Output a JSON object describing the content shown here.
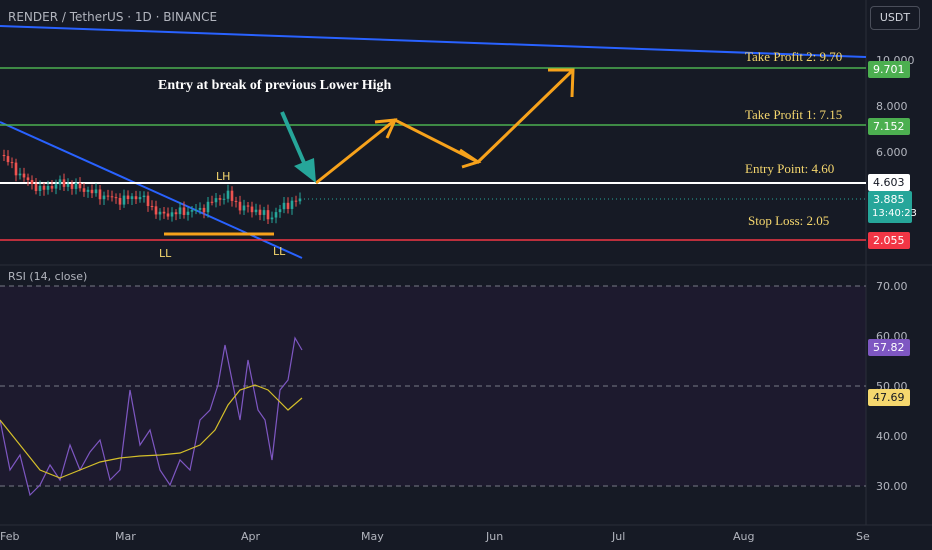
{
  "header": {
    "symbol_line": "RENDER / TetherUS · 1D · BINANCE",
    "currency": "USDT"
  },
  "annotations": {
    "entry_note": "Entry at break of previous Lower High",
    "take_profit_2": "Take Profit 2: 9.70",
    "take_profit_1": "Take Profit 1: 7.15",
    "entry_point": "Entry Point: 4.60",
    "stop_loss": "Stop Loss: 2.05",
    "lh": "LH",
    "ll_1": "LL",
    "ll_2": "LL"
  },
  "price_tags": {
    "tp2": "9.701",
    "tp1": "7.152",
    "entry": "4.603",
    "last": "3.885",
    "countdown": "13:40:23",
    "stop": "2.055"
  },
  "rsi": {
    "label": "RSI (14, close)",
    "value": "57.82",
    "ma_value": "47.69"
  },
  "colors": {
    "green": "#4caf50",
    "red": "#f23645",
    "white": "#ffffff",
    "blue": "#2962ff",
    "orange": "#f7a21b",
    "teal": "#26a69a",
    "purple": "#7e57c2",
    "yellow": "#f5d76e"
  },
  "chart_data": {
    "type": "line",
    "price_levels": {
      "take_profit_2": 9.7,
      "take_profit_1": 7.15,
      "entry": 4.6,
      "stop_loss": 2.05,
      "last": 3.885
    },
    "price_axis_ticks": [
      "10.000",
      "8.000",
      "6.000"
    ],
    "rsi_axis_ticks": [
      "70.00",
      "60.00",
      "50.00",
      "40.00",
      "30.00"
    ],
    "time_axis_ticks": [
      "Feb",
      "Mar",
      "Apr",
      "May",
      "Jun",
      "Jul",
      "Aug",
      "Se"
    ],
    "rsi_levels": {
      "upper": 70,
      "middle": 50,
      "lower": 30
    }
  }
}
